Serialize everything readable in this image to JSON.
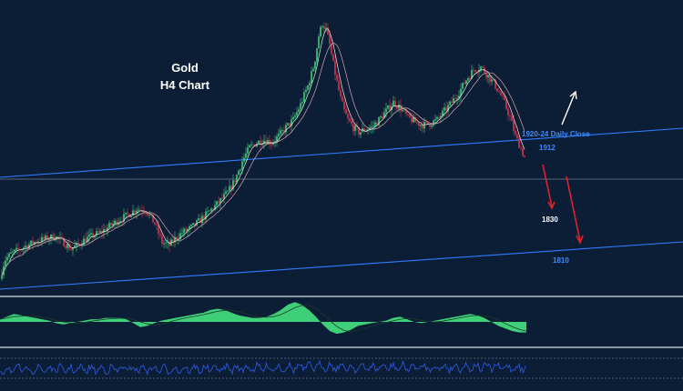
{
  "chart_data": {
    "type": "line",
    "title": "Gold",
    "subtitle": "H4 Chart",
    "annotations": {
      "resistance": "1920-24 Daily Close",
      "level_1912": "1912",
      "level_1830": "1830",
      "level_1810": "1810"
    },
    "price_path": {
      "x": [
        0,
        5,
        12,
        20,
        30,
        40,
        50,
        60,
        70,
        78,
        85,
        92,
        100,
        110,
        120,
        130,
        140,
        150,
        160,
        170,
        178,
        186,
        192,
        200,
        210,
        220,
        230,
        240,
        250,
        258,
        266,
        274,
        282,
        290,
        298,
        306,
        314,
        322,
        330,
        338,
        345,
        350,
        354,
        358,
        362,
        366,
        370,
        374,
        378,
        382,
        388,
        394,
        400,
        408,
        416,
        424,
        432,
        440,
        448,
        456,
        464,
        472,
        480,
        488,
        496,
        504,
        512,
        520,
        528,
        536,
        544,
        552,
        560,
        566,
        572,
        576
      ],
      "y": [
        1791,
        1806,
        1811,
        1814,
        1818,
        1821,
        1823,
        1825,
        1820,
        1815,
        1818,
        1822,
        1825,
        1828,
        1833,
        1838,
        1842,
        1847,
        1846,
        1835,
        1820,
        1818,
        1823,
        1828,
        1832,
        1838,
        1845,
        1852,
        1860,
        1870,
        1885,
        1896,
        1900,
        1902,
        1900,
        1905,
        1912,
        1918,
        1930,
        1945,
        1962,
        1985,
        1995,
        1990,
        1978,
        1962,
        1948,
        1935,
        1925,
        1918,
        1912,
        1908,
        1910,
        1912,
        1918,
        1925,
        1932,
        1927,
        1920,
        1916,
        1914,
        1915,
        1918,
        1925,
        1932,
        1940,
        1950,
        1958,
        1960,
        1953,
        1945,
        1935,
        1920,
        1905,
        1895,
        1888
      ]
    },
    "ylim": [
      1780,
      2010
    ],
    "macd_hist": [
      2,
      4,
      6,
      5,
      4,
      3,
      2,
      1,
      -1,
      -2,
      -1,
      0,
      1,
      2,
      2,
      3,
      3,
      3,
      2,
      -1,
      -4,
      -3,
      -1,
      1,
      2,
      3,
      4,
      5,
      6,
      7,
      9,
      10,
      9,
      7,
      5,
      4,
      3,
      3,
      4,
      6,
      9,
      13,
      15,
      13,
      9,
      4,
      -2,
      -7,
      -9,
      -8,
      -6,
      -3,
      -2,
      -1,
      0,
      1,
      3,
      4,
      2,
      0,
      -1,
      0,
      1,
      2,
      3,
      4,
      5,
      6,
      5,
      3,
      0,
      -3,
      -5,
      -7,
      -8,
      -8
    ],
    "colors": {
      "background": "#0c1e36",
      "bull_candle": "#3ecf78",
      "bear_candle": "#d9344a",
      "trend_line": "#2f7dff",
      "macd_fill": "#3ecf78",
      "rsi_line": "#2a55d8",
      "arrow_up": "#ffffff",
      "arrow_down": "#e0202e"
    }
  }
}
